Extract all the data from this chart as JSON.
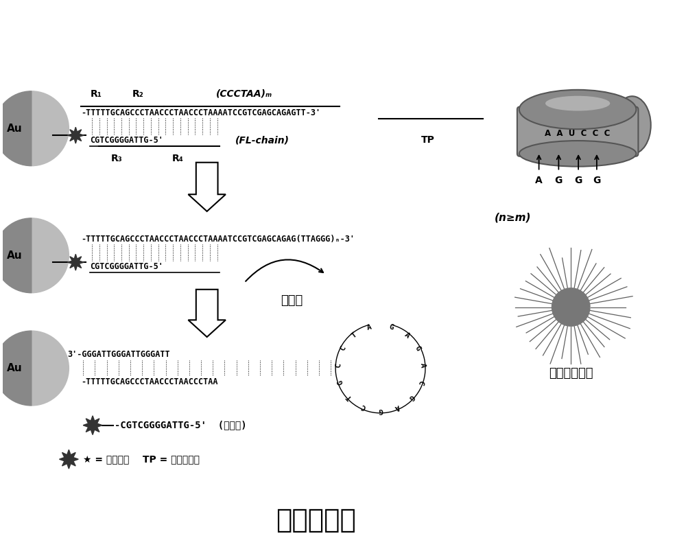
{
  "bg_color": "#ffffff",
  "title": "原理示意图",
  "title_fontsize": 28,
  "title_fontweight": "bold",
  "seq1_top": "-TTTTTGCAGCCCTAACCCTAACCCTAAAATCCGTCGAGCAGAGTT-3'",
  "seq1_bottom": "CGTCGGGGATTG-5'",
  "label_R1": "R₁",
  "label_R2": "R₂",
  "label_R3": "R₃",
  "label_R4": "R₄",
  "label_CCCTAA": "(CCCTAA)ₘ",
  "label_FLchain": "(FL-chain)",
  "label_TP": "TP",
  "seq2_top": "-TTTTTGCAGCCCTAACCCTAACCCTAAAATCCGTCGAGCAGAG(TTAGGG)ₙ-3'",
  "seq2_bottom": "CGTCGGGGATTG-5'",
  "label_nm": "(n≥m)",
  "label_chain_disp": "链替换",
  "seq3_top": "3'-GGGATTGGGATTGGGATT",
  "seq3_bottom": "-TTTTTGCAGCCCTAACCCTAACCCTAA",
  "label_Au": "Au",
  "label_fl_on": "-CGTCGGGGATTG-5'  (荧光开)",
  "label_fl_dye": "★ = 荧光染料    TP = 端粒酶引物",
  "label_sna": "球形核酸探针",
  "circle_color": "#888888",
  "text_color": "#000000",
  "arrow_color": "#000000"
}
